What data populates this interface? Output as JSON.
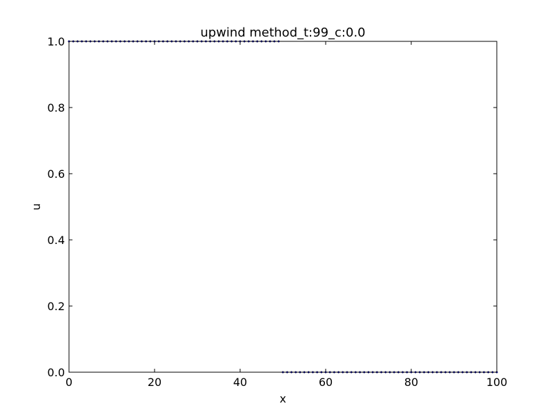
{
  "chart_data": {
    "type": "line",
    "title": "upwind method_t:99_c:0.0",
    "xlabel": "x",
    "ylabel": "u",
    "xlim": [
      0,
      100
    ],
    "ylim": [
      0.0,
      1.0
    ],
    "x_ticks": [
      0,
      20,
      40,
      60,
      80,
      100
    ],
    "x_tick_labels": [
      "0",
      "20",
      "40",
      "60",
      "80",
      "100"
    ],
    "y_ticks": [
      0.0,
      0.2,
      0.4,
      0.6,
      0.8,
      1.0
    ],
    "y_tick_labels": [
      "0.0",
      "0.2",
      "0.4",
      "0.6",
      "0.8",
      "1.0"
    ],
    "grid": false,
    "legend": false,
    "series": [
      {
        "color": "#0000ff",
        "marker": "dot",
        "x": [
          0,
          1,
          2,
          3,
          4,
          5,
          6,
          7,
          8,
          9,
          10,
          11,
          12,
          13,
          14,
          15,
          16,
          17,
          18,
          19,
          20,
          21,
          22,
          23,
          24,
          25,
          26,
          27,
          28,
          29,
          30,
          31,
          32,
          33,
          34,
          35,
          36,
          37,
          38,
          39,
          40,
          41,
          42,
          43,
          44,
          45,
          46,
          47,
          48,
          49,
          50,
          51,
          52,
          53,
          54,
          55,
          56,
          57,
          58,
          59,
          60,
          61,
          62,
          63,
          64,
          65,
          66,
          67,
          68,
          69,
          70,
          71,
          72,
          73,
          74,
          75,
          76,
          77,
          78,
          79,
          80,
          81,
          82,
          83,
          84,
          85,
          86,
          87,
          88,
          89,
          90,
          91,
          92,
          93,
          94,
          95,
          96,
          97,
          98,
          99,
          100
        ],
        "y": [
          1,
          1,
          1,
          1,
          1,
          1,
          1,
          1,
          1,
          1,
          1,
          1,
          1,
          1,
          1,
          1,
          1,
          1,
          1,
          1,
          1,
          1,
          1,
          1,
          1,
          1,
          1,
          1,
          1,
          1,
          1,
          1,
          1,
          1,
          1,
          1,
          1,
          1,
          1,
          1,
          1,
          1,
          1,
          1,
          1,
          1,
          1,
          1,
          1,
          1,
          0,
          0,
          0,
          0,
          0,
          0,
          0,
          0,
          0,
          0,
          0,
          0,
          0,
          0,
          0,
          0,
          0,
          0,
          0,
          0,
          0,
          0,
          0,
          0,
          0,
          0,
          0,
          0,
          0,
          0,
          0,
          0,
          0,
          0,
          0,
          0,
          0,
          0,
          0,
          0,
          0,
          0,
          0,
          0,
          0,
          0,
          0,
          0,
          0,
          0,
          0
        ]
      }
    ]
  }
}
